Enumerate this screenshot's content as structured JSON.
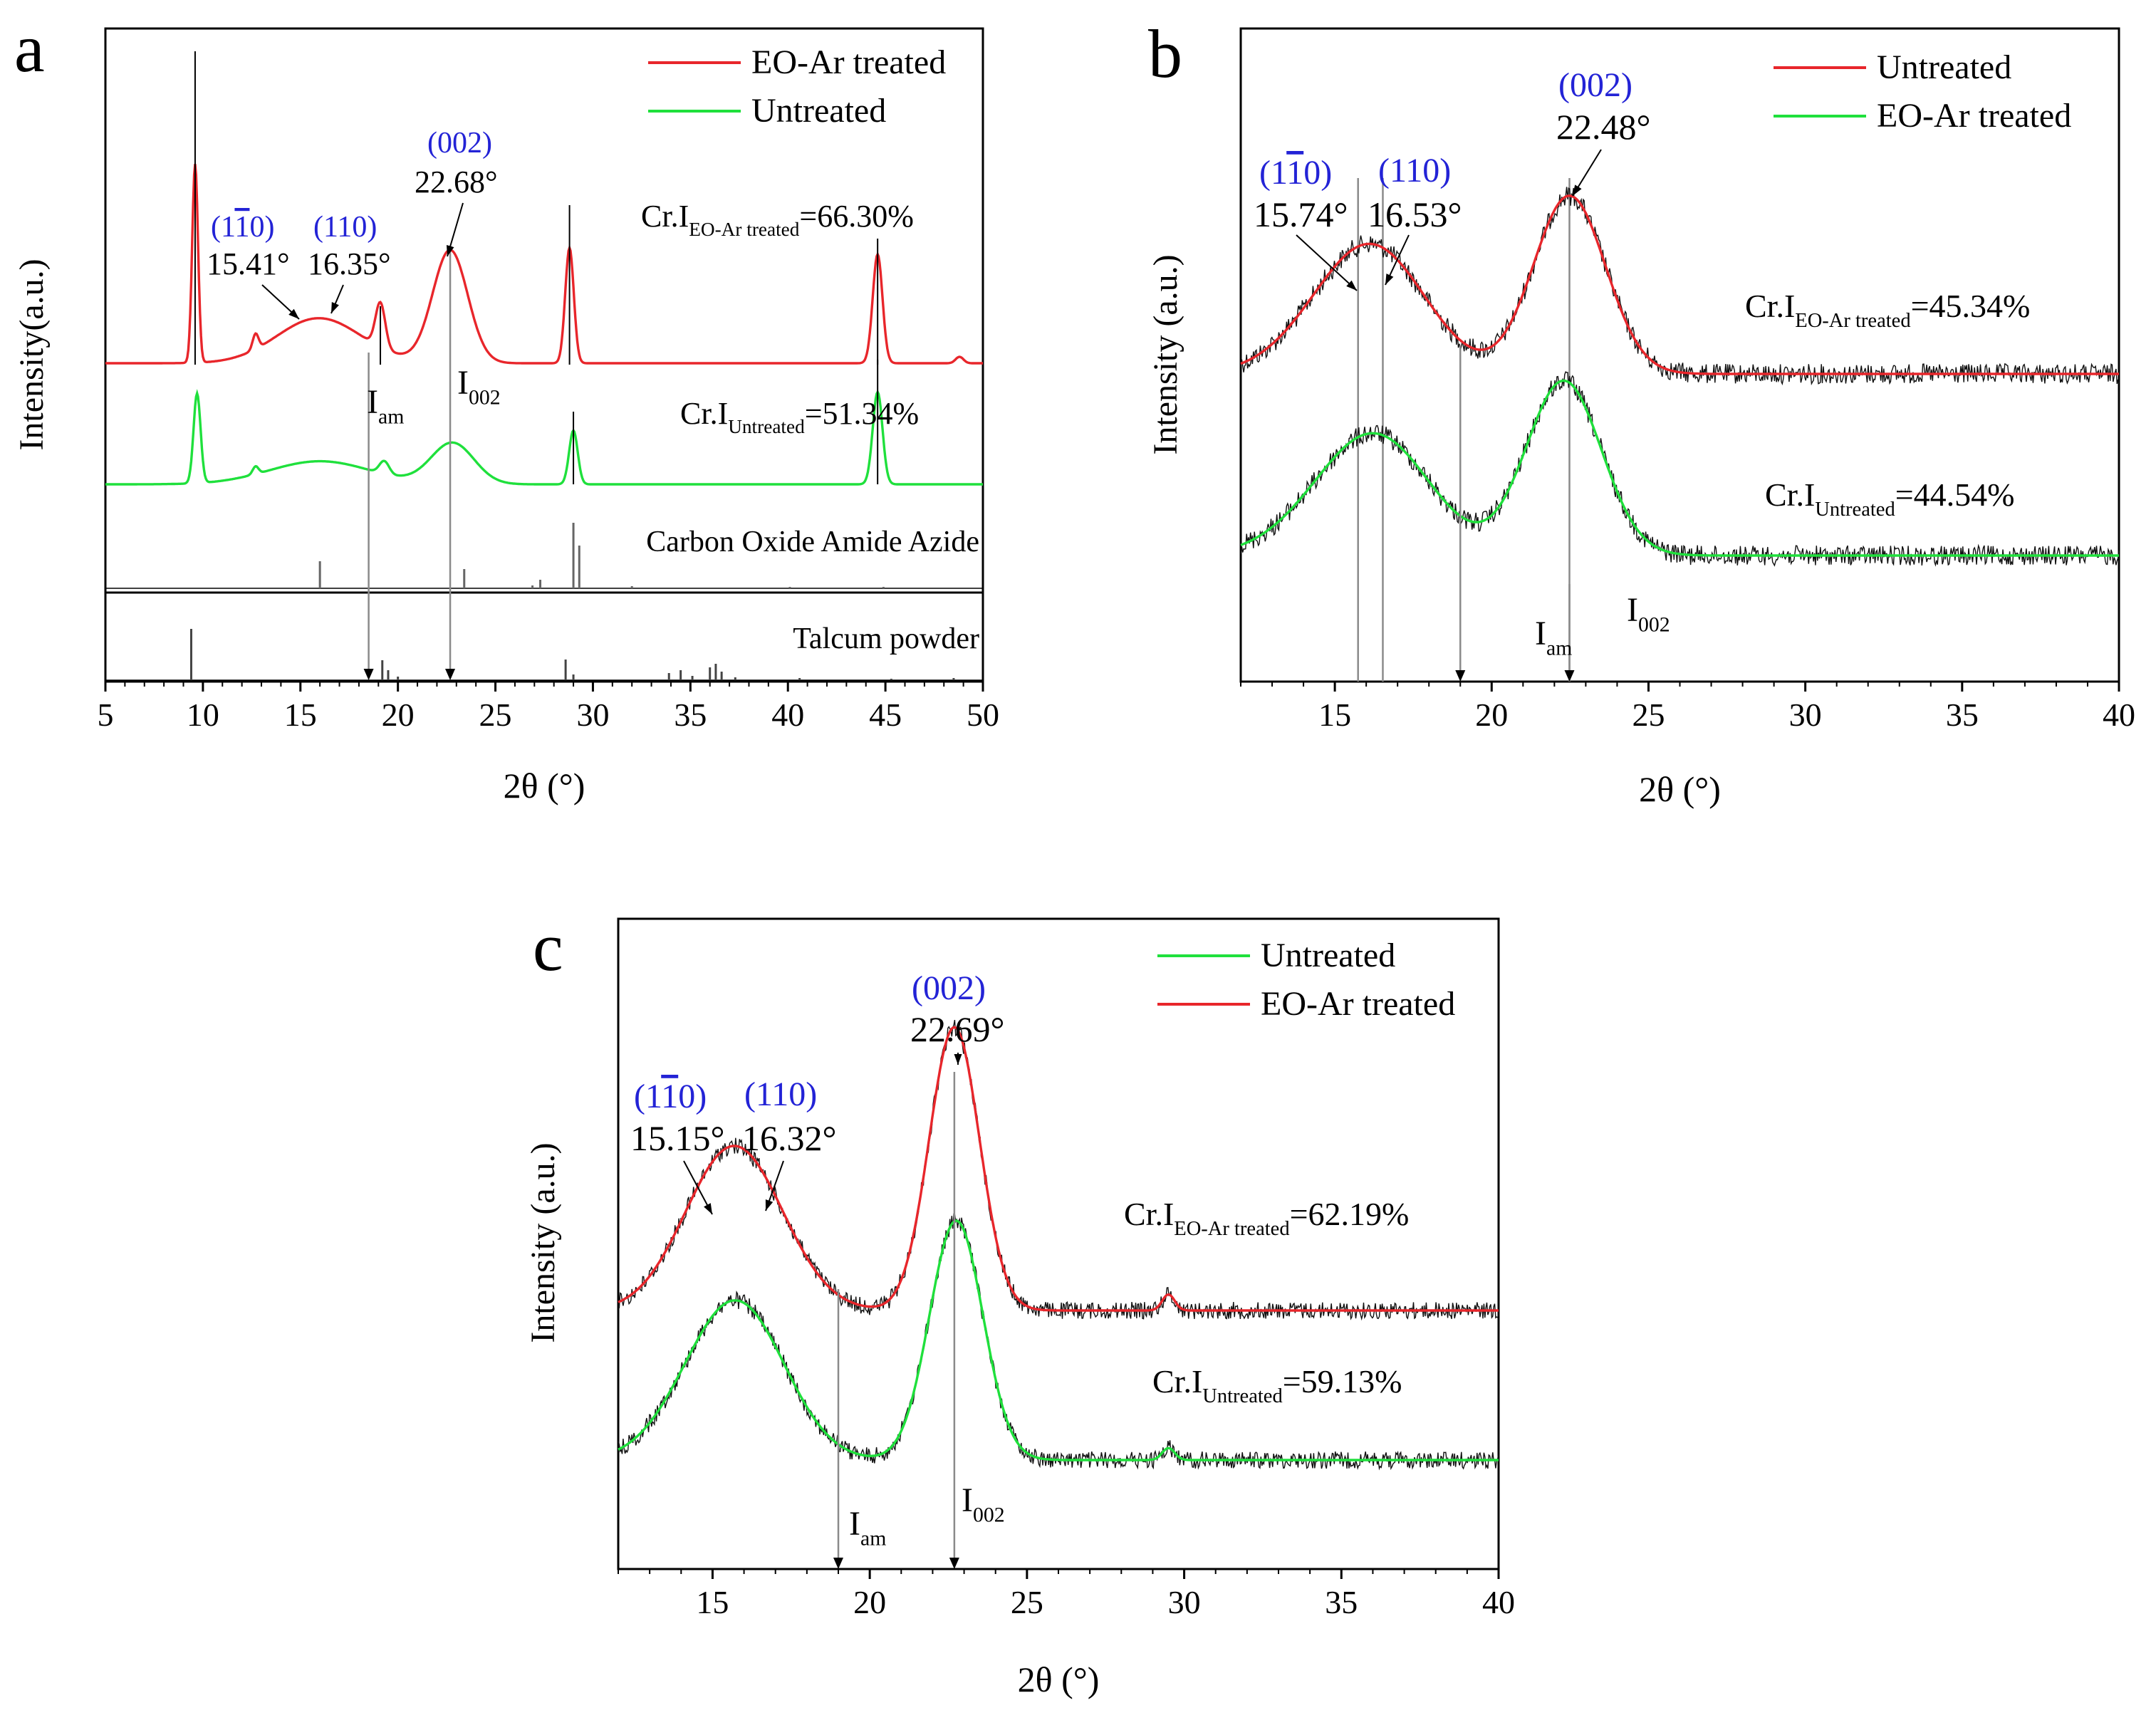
{
  "colors": {
    "red": "#e8262b",
    "green": "#1fe03c",
    "blue": "#2323d6",
    "black": "#000000",
    "gray": "#8a8a8a"
  },
  "chart_data": [
    {
      "id": "a",
      "panel_label": "a",
      "type": "line",
      "title": "",
      "xlabel": "2θ (°)",
      "ylabel": "Intensity(a.u.)",
      "xlim": [
        5,
        50
      ],
      "xticks": [
        "5",
        "10",
        "15",
        "20",
        "25",
        "30",
        "35",
        "40",
        "45",
        "50"
      ],
      "legend": {
        "position": "top-right",
        "entries": [
          {
            "name": "EO-Ar treated",
            "color": "red"
          },
          {
            "name": "Untreated",
            "color": "green"
          }
        ]
      },
      "series": [
        {
          "name": "EO-Ar treated",
          "color": "red",
          "peaks": [
            [
              9.6,
              1.55,
              0.15
            ],
            [
              12.7,
              0.12,
              0.15
            ],
            [
              15.41,
              0.14,
              2.0
            ],
            [
              16.35,
              0.22,
              2.2
            ],
            [
              19.1,
              0.35,
              0.25
            ],
            [
              22.68,
              0.88,
              0.9
            ],
            [
              28.8,
              0.9,
              0.22
            ],
            [
              44.6,
              0.85,
              0.25
            ],
            [
              48.8,
              0.05,
              0.2
            ]
          ],
          "baseline": 0.0
        },
        {
          "name": "Untreated",
          "color": "green",
          "peaks": [
            [
              9.7,
              0.7,
              0.18
            ],
            [
              12.7,
              0.06,
              0.15
            ],
            [
              16.0,
              0.18,
              2.6
            ],
            [
              19.3,
              0.1,
              0.25
            ],
            [
              22.8,
              0.32,
              1.1
            ],
            [
              29.0,
              0.42,
              0.22
            ],
            [
              44.6,
              0.72,
              0.25
            ]
          ],
          "baseline": 0.0
        }
      ],
      "reference_patterns": [
        {
          "name": "Carbon Oxide Amide Azide",
          "sticks": [
            [
              16.0,
              0.38
            ],
            [
              23.4,
              0.27
            ],
            [
              26.9,
              0.04
            ],
            [
              27.3,
              0.12
            ],
            [
              29.0,
              0.92
            ],
            [
              29.3,
              0.6
            ],
            [
              32.0,
              0.03
            ],
            [
              40.1,
              0.02
            ],
            [
              44.9,
              0.02
            ]
          ]
        },
        {
          "name": "Talcum powder",
          "sticks": [
            [
              9.4,
              0.72
            ],
            [
              19.2,
              0.28
            ],
            [
              19.5,
              0.14
            ],
            [
              20.0,
              0.05
            ],
            [
              28.6,
              0.29
            ],
            [
              29.0,
              0.08
            ],
            [
              33.9,
              0.1
            ],
            [
              34.5,
              0.14
            ],
            [
              35.1,
              0.06
            ],
            [
              36.0,
              0.18
            ],
            [
              36.3,
              0.23
            ],
            [
              36.6,
              0.12
            ],
            [
              37.3,
              0.04
            ],
            [
              40.6,
              0.03
            ],
            [
              45.3,
              0.02
            ],
            [
              48.5,
              0.03
            ]
          ]
        }
      ],
      "annotations": [
        {
          "miller": "(1",
          "bar": "1",
          "tail": "0)",
          "angle": "15.41°"
        },
        {
          "miller": "(110)",
          "angle": "16.35°"
        },
        {
          "miller": "(002)",
          "angle": "22.68°"
        }
      ],
      "markers": [
        {
          "label": "I",
          "sub": "am",
          "x": 18.5
        },
        {
          "label": "I",
          "sub": "002",
          "x": 22.68
        }
      ],
      "crystallinity": [
        {
          "prefix": "Cr.I",
          "sub": "EO-Ar treated",
          "value": "=66.30%"
        },
        {
          "prefix": "Cr.I",
          "sub": "Untreated",
          "value": "=51.34%"
        }
      ]
    },
    {
      "id": "b",
      "panel_label": "b",
      "type": "line",
      "title": "",
      "xlabel": "2θ (°)",
      "ylabel": "Intensity (a.u.)",
      "xlim": [
        12,
        40
      ],
      "xticks": [
        "15",
        "20",
        "25",
        "30",
        "35",
        "40"
      ],
      "legend": {
        "position": "top-right",
        "entries": [
          {
            "name": "Untreated",
            "color": "red"
          },
          {
            "name": "EO-Ar treated",
            "color": "green"
          }
        ]
      },
      "series": [
        {
          "name": "Untreated",
          "color": "red",
          "peaks": [
            [
              15.74,
              0.45,
              1.8
            ],
            [
              16.53,
              0.3,
              1.6
            ],
            [
              22.48,
              1.0,
              1.15
            ]
          ],
          "baseline": 0.0
        },
        {
          "name": "EO-Ar treated",
          "color": "green",
          "peaks": [
            [
              15.9,
              0.45,
              1.9
            ],
            [
              16.6,
              0.25,
              1.6
            ],
            [
              22.3,
              0.98,
              1.2
            ]
          ],
          "baseline": 0.0
        }
      ],
      "annotations": [
        {
          "miller": "(1",
          "bar": "1",
          "tail": "0)",
          "angle": "15.74°"
        },
        {
          "miller": "(110)",
          "angle": "16.53°"
        },
        {
          "miller": "(002)",
          "angle": "22.48°"
        }
      ],
      "markers": [
        {
          "label": "I",
          "sub": "am",
          "x": 19.0
        },
        {
          "label": "I",
          "sub": "002",
          "x": 22.48
        }
      ],
      "crystallinity": [
        {
          "prefix": "Cr.I",
          "sub": "EO-Ar treated",
          "value": "=45.34%"
        },
        {
          "prefix": "Cr.I",
          "sub": "Untreated",
          "value": "=44.54%"
        }
      ]
    },
    {
      "id": "c",
      "panel_label": "c",
      "type": "line",
      "title": "",
      "xlabel": "2θ (°)",
      "ylabel": "Intensity (a.u.)",
      "xlim": [
        12,
        40
      ],
      "xticks": [
        "15",
        "20",
        "25",
        "30",
        "35",
        "40"
      ],
      "legend": {
        "position": "top-right",
        "entries": [
          {
            "name": "Untreated",
            "color": "green"
          },
          {
            "name": "EO-Ar treated",
            "color": "red"
          }
        ]
      },
      "series": [
        {
          "name": "EO-Ar treated",
          "color": "red",
          "peaks": [
            [
              15.15,
              0.48,
              1.4
            ],
            [
              16.32,
              0.42,
              1.4
            ],
            [
              22.69,
              1.42,
              0.8
            ],
            [
              29.5,
              0.08,
              0.2
            ]
          ],
          "baseline": 0.0
        },
        {
          "name": "Untreated",
          "color": "green",
          "peaks": [
            [
              15.2,
              0.48,
              1.5
            ],
            [
              16.3,
              0.38,
              1.4
            ],
            [
              22.75,
              1.2,
              0.85
            ],
            [
              29.5,
              0.06,
              0.2
            ]
          ],
          "baseline": 0.0
        }
      ],
      "annotations": [
        {
          "miller": "(1",
          "bar": "1",
          "tail": "0)",
          "angle": "15.15°"
        },
        {
          "miller": "(110)",
          "angle": "16.32°"
        },
        {
          "miller": "(002)",
          "angle": "22.69°"
        }
      ],
      "markers": [
        {
          "label": "I",
          "sub": "am",
          "x": 19.0
        },
        {
          "label": "I",
          "sub": "002",
          "x": 22.69
        }
      ],
      "crystallinity": [
        {
          "prefix": "Cr.I",
          "sub": "EO-Ar treated",
          "value": "=62.19%"
        },
        {
          "prefix": "Cr.I",
          "sub": "Untreated",
          "value": "=59.13%"
        }
      ]
    }
  ]
}
